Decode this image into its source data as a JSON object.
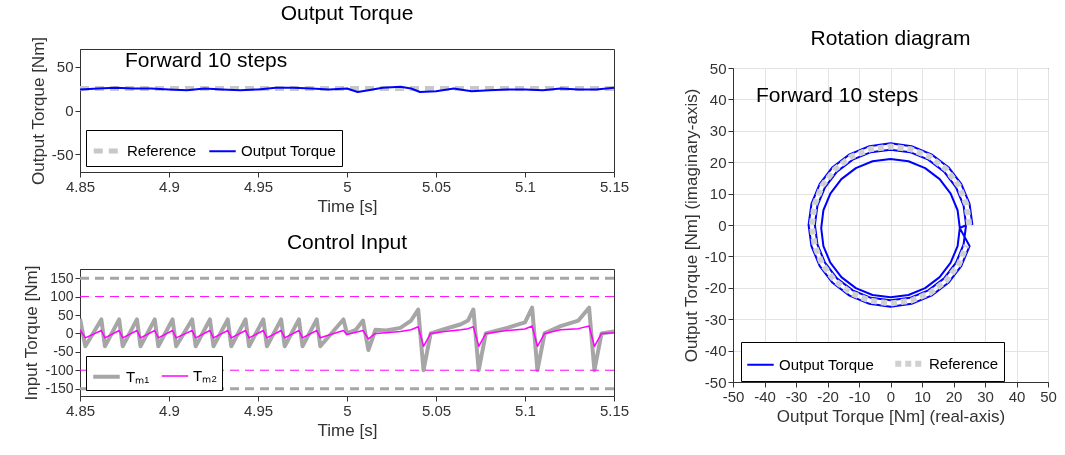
{
  "chart_data": [
    {
      "type": "line",
      "title": "Output Torque",
      "xlabel": "Time [s]",
      "ylabel": "Output Torque [Nm]",
      "annotations": [
        "Forward 10 steps"
      ],
      "xlim": [
        4.85,
        5.15
      ],
      "xticks": [
        4.85,
        4.9,
        4.95,
        5,
        5.05,
        5.1,
        5.15
      ],
      "ylim": [
        -70,
        70
      ],
      "yticks": [
        -50,
        0,
        50
      ],
      "grid": false,
      "legend": "bottom left",
      "series": [
        {
          "name": "Reference",
          "color": "#c8c8c8",
          "line_style": "dashed",
          "x": [
            4.85,
            5.15
          ],
          "values": [
            25,
            25
          ]
        },
        {
          "name": "Output Torque",
          "color": "#0000ff",
          "line_style": "solid",
          "x": [
            4.85,
            4.86,
            4.87,
            4.88,
            4.89,
            4.9,
            4.91,
            4.92,
            4.93,
            4.94,
            4.95,
            4.96,
            4.97,
            4.98,
            4.99,
            5.0,
            5.006,
            5.012,
            5.02,
            5.03,
            5.036,
            5.041,
            5.05,
            5.06,
            5.07,
            5.08,
            5.09,
            5.1,
            5.11,
            5.12,
            5.13,
            5.14,
            5.15
          ],
          "values": [
            24,
            25,
            26,
            25,
            25,
            24,
            23,
            25,
            24,
            23,
            24,
            26,
            26,
            25,
            24,
            25,
            21,
            23,
            26,
            27,
            25,
            21,
            22,
            25,
            22,
            23,
            24,
            24,
            23,
            25,
            24,
            24,
            26
          ]
        }
      ]
    },
    {
      "type": "line",
      "title": "Control Input",
      "xlabel": "Time [s]",
      "ylabel": "Input Torque [Nm]",
      "xlim": [
        4.85,
        5.15
      ],
      "xticks": [
        4.85,
        4.9,
        4.95,
        5,
        5.05,
        5.1,
        5.15
      ],
      "ylim": [
        -170,
        175
      ],
      "yticks": [
        -150,
        -100,
        -50,
        0,
        50,
        100,
        150
      ],
      "grid": false,
      "legend": "bottom left",
      "ref_lines": [
        {
          "axis": "y",
          "value": 150,
          "color": "#a6a6a6",
          "line_style": "dashed"
        },
        {
          "axis": "y",
          "value": 100,
          "color": "#ff00ff",
          "line_style": "dashed"
        },
        {
          "axis": "y",
          "value": -100,
          "color": "#ff00ff",
          "line_style": "dashed"
        },
        {
          "axis": "y",
          "value": -150,
          "color": "#a6a6a6",
          "line_style": "dashed"
        }
      ],
      "x": [
        4.85,
        4.853,
        4.862,
        4.864,
        4.872,
        4.874,
        4.882,
        4.884,
        4.892,
        4.894,
        4.902,
        4.904,
        4.913,
        4.915,
        4.923,
        4.925,
        4.933,
        4.935,
        4.943,
        4.945,
        4.953,
        4.955,
        4.963,
        4.965,
        4.973,
        4.975,
        4.983,
        4.985,
        4.998,
        5.0,
        5.005,
        5.009,
        5.012,
        5.016,
        5.022,
        5.03,
        5.036,
        5.04,
        5.043,
        5.047,
        5.055,
        5.064,
        5.068,
        5.071,
        5.074,
        5.078,
        5.09,
        5.1,
        5.104,
        5.107,
        5.111,
        5.12,
        5.13,
        5.136,
        5.139,
        5.143,
        5.15
      ],
      "series": [
        {
          "name": "Tₘ₁",
          "color": "#a6a6a6",
          "line_style": "solid",
          "values": [
            40,
            -35,
            38,
            -35,
            38,
            -35,
            38,
            -35,
            38,
            -35,
            38,
            -35,
            38,
            -35,
            38,
            -35,
            38,
            -35,
            38,
            -35,
            38,
            -35,
            38,
            -35,
            38,
            -35,
            38,
            -35,
            38,
            0,
            10,
            35,
            -45,
            10,
            8,
            15,
            35,
            65,
            -100,
            0,
            12,
            25,
            35,
            65,
            -100,
            0,
            15,
            30,
            70,
            -100,
            0,
            20,
            35,
            70,
            -100,
            0,
            5
          ]
        },
        {
          "name": "Tₘ₂",
          "color": "#ff00ff",
          "line_style": "solid",
          "values": [
            10,
            -12,
            8,
            -12,
            8,
            -12,
            8,
            -12,
            8,
            -12,
            8,
            -12,
            8,
            -12,
            8,
            -12,
            8,
            -12,
            8,
            -12,
            8,
            -12,
            8,
            -12,
            8,
            -12,
            8,
            -12,
            8,
            -3,
            3,
            8,
            -15,
            0,
            2,
            5,
            10,
            18,
            -35,
            0,
            5,
            10,
            13,
            18,
            -35,
            0,
            8,
            12,
            20,
            -35,
            0,
            10,
            13,
            20,
            -35,
            0,
            2
          ]
        }
      ]
    },
    {
      "type": "line",
      "title": "Rotation diagram",
      "xlabel": "Output Torque [Nm] (real-axis)",
      "ylabel": "Output Torque [Nm] (imaginary-axis)",
      "annotations": [
        "Forward 10 steps"
      ],
      "xlim": [
        -50,
        50
      ],
      "xticks": [
        -50,
        -40,
        -30,
        -20,
        -10,
        0,
        10,
        20,
        30,
        40,
        50
      ],
      "ylim": [
        -50,
        50
      ],
      "yticks": [
        -50,
        -40,
        -30,
        -20,
        -10,
        0,
        10,
        20,
        30,
        40,
        50
      ],
      "grid": true,
      "legend": "bottom",
      "series": [
        {
          "name": "Output Torque",
          "color": "#0000ff",
          "line_style": "solid",
          "x": [
            26,
            25.1,
            22.5,
            18.4,
            13,
            6.7,
            0,
            -6.7,
            -13,
            -18.4,
            -22.5,
            -25.1,
            -26,
            -25.1,
            -22.5,
            -18.4,
            -13,
            -6.7,
            0,
            6.7,
            13,
            18.4,
            22.5,
            25.1,
            22,
            21.3,
            19.1,
            15.6,
            11,
            5.7,
            0,
            -5.7,
            -11,
            -15.6,
            -19.1,
            -21.3,
            -22,
            -21.3,
            -19.1,
            -15.6,
            -11,
            -5.7,
            0,
            5.7,
            11,
            15.6,
            19.1,
            21.3,
            22,
            24,
            23.2,
            20.8,
            17,
            12,
            6.2,
            0,
            -6.2,
            -12,
            -17,
            -20.8,
            -23.2,
            -24,
            -23.2,
            -20.8,
            -17,
            -12,
            -6.2,
            0,
            6.2,
            12,
            17,
            20.8,
            23.2,
            24
          ],
          "values": [
            0,
            6.7,
            13,
            18.4,
            22.5,
            25.1,
            26,
            25.1,
            22.5,
            18.4,
            13,
            6.7,
            0,
            -6.7,
            -13,
            -18.4,
            -22.5,
            -25.1,
            -26,
            -25.1,
            -22.5,
            -18.4,
            -13,
            -6.7,
            -1,
            4.7,
            10,
            14.6,
            18.1,
            20.3,
            21,
            20.3,
            18.1,
            14.6,
            10,
            4.7,
            -1,
            -6.7,
            -12,
            -16.6,
            -20.1,
            -22.3,
            -23,
            -22.3,
            -20.1,
            -16.6,
            -12,
            -6.7,
            -1,
            0,
            6.2,
            12,
            17,
            20.8,
            23.2,
            24,
            23.2,
            20.8,
            17,
            12,
            6.2,
            0,
            -6.2,
            -12,
            -17,
            -20.8,
            -23.2,
            -24,
            -23.2,
            -20.8,
            -17,
            -12,
            -6.2,
            0
          ]
        },
        {
          "name": "Reference",
          "color": "#d0d0d0",
          "line_style": "dotted",
          "x": [
            25,
            24.1,
            21.7,
            17.7,
            12.5,
            6.5,
            0,
            -6.5,
            -12.5,
            -17.7,
            -21.7,
            -24.1,
            -25,
            -24.1,
            -21.7,
            -17.7,
            -12.5,
            -6.5,
            0,
            6.5,
            12.5,
            17.7,
            21.7,
            24.1
          ],
          "values": [
            0,
            6.5,
            12.5,
            17.7,
            21.7,
            24.1,
            25,
            24.1,
            21.7,
            17.7,
            12.5,
            6.5,
            0,
            -6.5,
            -12.5,
            -17.7,
            -21.7,
            -24.1,
            -25,
            -24.1,
            -21.7,
            -17.7,
            -12.5,
            -6.5
          ]
        }
      ]
    }
  ]
}
